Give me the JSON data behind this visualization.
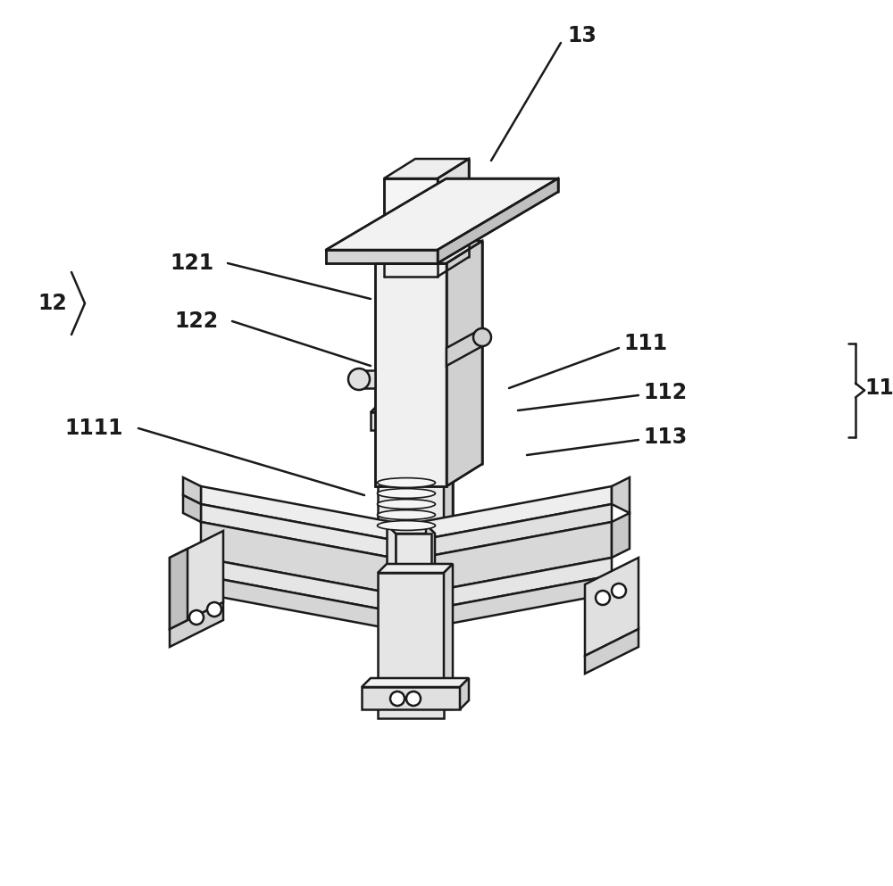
{
  "background_color": "#ffffff",
  "line_color": "#1a1a1a",
  "lw": 1.8,
  "fig_w": 10.0,
  "fig_h": 9.93,
  "dpi": 100,
  "fill_light": "#f0f0f0",
  "fill_mid": "#d8d8d8",
  "fill_dark": "#b8b8b8",
  "fill_white": "#ffffff",
  "label_fontsize": 17,
  "label_fontweight": "bold",
  "label_fontfamily": "DejaVu Sans"
}
